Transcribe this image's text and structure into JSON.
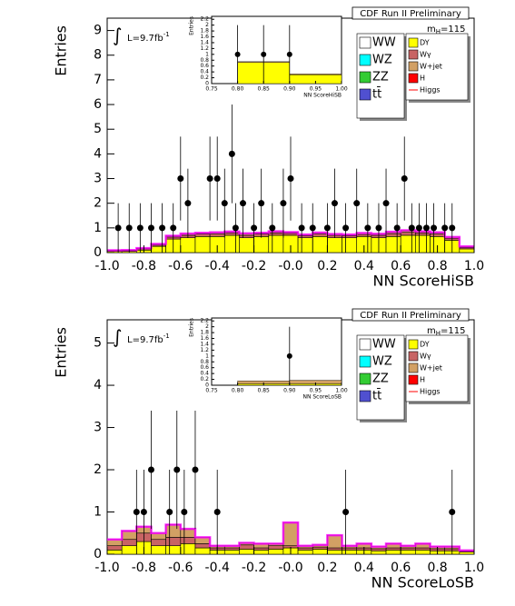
{
  "chart_data": [
    {
      "type": "histogram",
      "title": "CDF Run II Preliminary",
      "xlabel": "NN ScoreHiSB",
      "ylabel": "Entries",
      "lumi": "L=9.7fb",
      "lumi_exp": "-1",
      "mass": "m",
      "mass_sub": "H",
      "mass_value": "=115",
      "legend": [
        [
          {
            "name": "WW",
            "color": "#ffffff"
          },
          {
            "name": "WZ",
            "color": "#00ffff"
          },
          {
            "name": "ZZ",
            "color": "#33cc33"
          },
          {
            "name": "tt̄",
            "color": "#5050d0"
          }
        ],
        [
          {
            "name": "DY",
            "color": "#ffff00"
          },
          {
            "name": "Wγ",
            "color": "#c86464"
          },
          {
            "name": "W+jet",
            "color": "#d2a064"
          },
          {
            "name": "H",
            "color": "#ff0000"
          },
          {
            "name": "Higgs",
            "color": "#ff0000",
            "marker": "line"
          }
        ]
      ],
      "bins": [
        -1.0,
        -0.92,
        -0.84,
        -0.76,
        -0.68,
        -0.6,
        -0.52,
        -0.44,
        -0.36,
        -0.28,
        -0.2,
        -0.12,
        -0.04,
        0.04,
        0.12,
        0.2,
        0.28,
        0.36,
        0.44,
        0.52,
        0.6,
        0.68,
        0.76,
        0.84,
        0.92,
        1.0
      ],
      "series": [
        {
          "color": "#ffff00",
          "values": [
            0.05,
            0.05,
            0.1,
            0.25,
            0.55,
            0.6,
            0.65,
            0.65,
            0.7,
            0.6,
            0.65,
            0.7,
            0.7,
            0.6,
            0.65,
            0.6,
            0.6,
            0.65,
            0.6,
            0.65,
            0.7,
            0.7,
            0.65,
            0.5,
            0.15
          ]
        },
        {
          "color": "#c86464",
          "values": [
            0.02,
            0.03,
            0.05,
            0.05,
            0.08,
            0.1,
            0.1,
            0.1,
            0.1,
            0.1,
            0.1,
            0.1,
            0.08,
            0.08,
            0.1,
            0.1,
            0.08,
            0.08,
            0.1,
            0.12,
            0.12,
            0.1,
            0.1,
            0.08,
            0.05
          ]
        },
        {
          "color": "#d2a064",
          "values": [
            0.02,
            0.02,
            0.03,
            0.05,
            0.05,
            0.07,
            0.05,
            0.07,
            0.05,
            0.08,
            0.05,
            0.06,
            0.05,
            0.05,
            0.06,
            0.05,
            0.05,
            0.06,
            0.06,
            0.07,
            0.08,
            0.06,
            0.07,
            0.05,
            0.05
          ]
        }
      ],
      "band_color": "#ff00ff",
      "points": {
        "x": [
          -0.94,
          -0.88,
          -0.82,
          -0.76,
          -0.7,
          -0.64,
          -0.6,
          -0.56,
          -0.44,
          -0.4,
          -0.36,
          -0.32,
          -0.3,
          -0.26,
          -0.2,
          -0.16,
          -0.1,
          -0.04,
          0.0,
          0.06,
          0.12,
          0.2,
          0.24,
          0.3,
          0.36,
          0.42,
          0.48,
          0.52,
          0.58,
          0.62,
          0.66,
          0.7,
          0.74,
          0.78,
          0.84,
          0.88
        ],
        "values": [
          1,
          1,
          1,
          1,
          1,
          1,
          3,
          2,
          3,
          3,
          2,
          4,
          1,
          2,
          1,
          2,
          1,
          2,
          3,
          1,
          1,
          1,
          2,
          1,
          2,
          1,
          1,
          2,
          1,
          3,
          1,
          1,
          1,
          1,
          1,
          1
        ],
        "errors": [
          1,
          1,
          1,
          1,
          1,
          1,
          1.7,
          1.4,
          1.7,
          1.7,
          1.4,
          2,
          1,
          1.4,
          1,
          1.4,
          1,
          1.4,
          1.7,
          1,
          1,
          1,
          1.4,
          1,
          1.4,
          1,
          1,
          1.4,
          1,
          1.7,
          1,
          1,
          1,
          1,
          1,
          1
        ]
      },
      "xlim": [
        -1,
        1
      ],
      "ylim": [
        0,
        9.5
      ],
      "xticks": [
        {
          "value": -1,
          "label": "-1.0"
        },
        -0.8,
        -0.6,
        -0.4,
        -0.2,
        {
          "value": 0,
          "label": "-0.0"
        },
        0.2,
        0.4,
        0.6,
        0.8,
        {
          "value": 1,
          "label": "1.0"
        }
      ],
      "yticks": [
        0,
        1,
        2,
        3,
        4,
        5,
        6,
        7,
        8,
        9
      ],
      "inset": {
        "xlabel": "NN ScoreHiSB",
        "ylabel": "Entries",
        "bins": [
          0.75,
          0.8,
          0.9,
          1.0
        ],
        "series": [
          {
            "color": "#ffff00",
            "values": [
              0,
              0.72,
              0.3
            ]
          },
          {
            "color": "#d2a064",
            "values": [
              0,
              0.03,
              0.03
            ]
          }
        ],
        "points": {
          "x": [
            0.8,
            0.85,
            0.9
          ],
          "values": [
            1,
            1,
            1
          ],
          "errors": [
            1,
            1,
            1
          ]
        },
        "xlim": [
          0.75,
          1.0
        ],
        "ylim": [
          0,
          2.3
        ],
        "xticks": [
          0.75,
          {
            "value": 0.8,
            "label": "0.80"
          },
          0.85,
          {
            "value": 0.9,
            "label": "0.90"
          },
          0.95,
          {
            "value": 1.0,
            "label": "1.00"
          }
        ],
        "yticks": [
          0,
          0.2,
          0.4,
          0.6,
          0.8,
          1,
          1.2,
          1.4,
          1.6,
          1.8,
          2,
          2.2
        ]
      }
    },
    {
      "type": "histogram",
      "title": "CDF Run II Preliminary",
      "xlabel": "NN ScoreLoSB",
      "ylabel": "Entries",
      "lumi": "L=9.7fb",
      "lumi_exp": "-1",
      "mass": "m",
      "mass_sub": "H",
      "mass_value": "=115",
      "legend": [
        [
          {
            "name": "WW",
            "color": "#ffffff"
          },
          {
            "name": "WZ",
            "color": "#00ffff"
          },
          {
            "name": "ZZ",
            "color": "#33cc33"
          },
          {
            "name": "tt̄",
            "color": "#5050d0"
          }
        ],
        [
          {
            "name": "DY",
            "color": "#ffff00"
          },
          {
            "name": "Wγ",
            "color": "#c86464"
          },
          {
            "name": "W+jet",
            "color": "#d2a064"
          },
          {
            "name": "H",
            "color": "#ff0000"
          },
          {
            "name": "Higgs",
            "color": "#ff0000",
            "marker": "line"
          }
        ]
      ],
      "bins": [
        -1.0,
        -0.92,
        -0.84,
        -0.76,
        -0.68,
        -0.6,
        -0.52,
        -0.44,
        -0.36,
        -0.28,
        -0.2,
        -0.12,
        -0.04,
        0.04,
        0.12,
        0.2,
        0.28,
        0.36,
        0.44,
        0.52,
        0.6,
        0.68,
        0.76,
        0.84,
        0.92,
        1.0
      ],
      "series": [
        {
          "color": "#ffff00",
          "values": [
            0.1,
            0.2,
            0.3,
            0.2,
            0.2,
            0.25,
            0.15,
            0.1,
            0.1,
            0.12,
            0.1,
            0.12,
            0.15,
            0.1,
            0.12,
            0.1,
            0.1,
            0.1,
            0.08,
            0.1,
            0.1,
            0.1,
            0.08,
            0.08,
            0.05
          ]
        },
        {
          "color": "#c86464",
          "values": [
            0.1,
            0.15,
            0.2,
            0.15,
            0.2,
            0.15,
            0.1,
            0.05,
            0.05,
            0.1,
            0.05,
            0.08,
            0.05,
            0.05,
            0.05,
            0.05,
            0.05,
            0.05,
            0.05,
            0.05,
            0.05,
            0.05,
            0.05,
            0.05,
            0.02
          ]
        },
        {
          "color": "#d2a064",
          "values": [
            0.15,
            0.2,
            0.15,
            0.15,
            0.3,
            0.2,
            0.15,
            0.05,
            0.05,
            0.05,
            0.1,
            0.05,
            0.55,
            0.05,
            0.05,
            0.3,
            0.05,
            0.1,
            0.05,
            0.1,
            0.05,
            0.1,
            0.05,
            0.05,
            0.02
          ]
        }
      ],
      "band_color": "#ff00ff",
      "points": {
        "x": [
          -0.84,
          -0.8,
          -0.76,
          -0.66,
          -0.62,
          -0.58,
          -0.52,
          -0.4,
          0.3,
          0.88
        ],
        "values": [
          1,
          1,
          2,
          1,
          2,
          1,
          2,
          1,
          1,
          1
        ],
        "errors": [
          1,
          1,
          1.4,
          1,
          1.4,
          1,
          1.4,
          1,
          1,
          1
        ]
      },
      "xlim": [
        -1,
        1
      ],
      "ylim": [
        0,
        5.55
      ],
      "xticks": [
        {
          "value": -1,
          "label": "-1.0"
        },
        -0.8,
        -0.6,
        -0.4,
        -0.2,
        {
          "value": 0,
          "label": "-0.0"
        },
        0.2,
        0.4,
        0.6,
        0.8,
        {
          "value": 1,
          "label": "1.0"
        }
      ],
      "yticks": [
        0,
        1,
        2,
        3,
        4,
        5
      ],
      "inset": {
        "xlabel": "NN ScoreLoSB",
        "ylabel": "Entries",
        "bins": [
          0.75,
          0.8,
          0.9,
          1.0
        ],
        "series": [
          {
            "color": "#ffff00",
            "values": [
              0,
              0.05,
              0.05
            ]
          },
          {
            "color": "#d2a064",
            "values": [
              0,
              0.1,
              0.12
            ]
          }
        ],
        "points": {
          "x": [
            0.9
          ],
          "values": [
            1
          ],
          "errors": [
            1
          ]
        },
        "xlim": [
          0.75,
          1.0
        ],
        "ylim": [
          0,
          2.3
        ],
        "xticks": [
          0.75,
          {
            "value": 0.8,
            "label": "0.80"
          },
          0.85,
          {
            "value": 0.9,
            "label": "0.90"
          },
          0.95,
          {
            "value": 1.0,
            "label": "1.00"
          }
        ],
        "yticks": [
          0,
          0.2,
          0.4,
          0.6,
          0.8,
          1,
          1.2,
          1.4,
          1.6,
          1.8,
          2,
          2.2
        ]
      }
    }
  ]
}
